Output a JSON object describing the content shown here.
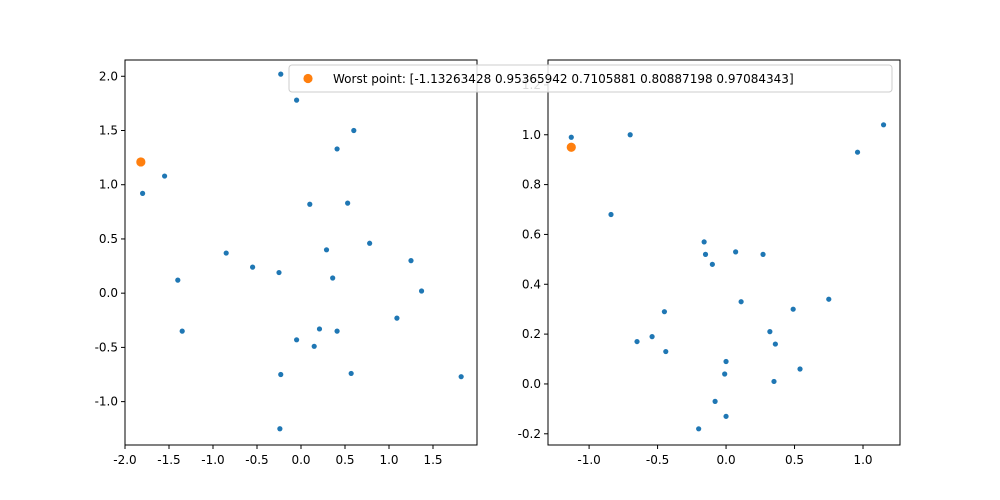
{
  "chart_data": [
    {
      "type": "scatter",
      "xlim": [
        -2.0,
        2.0
      ],
      "ylim": [
        -1.4,
        2.15
      ],
      "xticks": [
        "-2.0",
        "-1.5",
        "-1.0",
        "-0.5",
        "0.0",
        "0.5",
        "1.0",
        "1.5"
      ],
      "xtick_values": [
        -2.0,
        -1.5,
        -1.0,
        -0.5,
        0.0,
        0.5,
        1.0,
        1.5
      ],
      "yticks": [
        "-1.0",
        "-0.5",
        "0.0",
        "0.5",
        "1.0",
        "1.5",
        "2.0"
      ],
      "ytick_values": [
        -1.0,
        -0.5,
        0.0,
        0.5,
        1.0,
        1.5,
        2.0
      ],
      "grid": false,
      "series": [
        {
          "color": "#1f77b4",
          "marker_size": "small",
          "points": [
            [
              -0.23,
              2.02
            ],
            [
              -0.05,
              1.78
            ],
            [
              0.6,
              1.5
            ],
            [
              0.41,
              1.33
            ],
            [
              -1.55,
              1.08
            ],
            [
              -1.8,
              0.92
            ],
            [
              0.1,
              0.82
            ],
            [
              0.53,
              0.83
            ],
            [
              0.78,
              0.46
            ],
            [
              0.29,
              0.4
            ],
            [
              -0.85,
              0.37
            ],
            [
              -0.55,
              0.24
            ],
            [
              -0.25,
              0.19
            ],
            [
              1.25,
              0.3
            ],
            [
              0.36,
              0.14
            ],
            [
              -1.4,
              0.12
            ],
            [
              1.37,
              0.02
            ],
            [
              -1.35,
              -0.35
            ],
            [
              1.09,
              -0.23
            ],
            [
              0.21,
              -0.33
            ],
            [
              0.41,
              -0.35
            ],
            [
              -0.05,
              -0.43
            ],
            [
              0.15,
              -0.49
            ],
            [
              -0.23,
              -0.75
            ],
            [
              0.57,
              -0.74
            ],
            [
              1.82,
              -0.77
            ],
            [
              -0.24,
              -1.25
            ]
          ]
        },
        {
          "name": "Worst point: [-1.13263428  0.95365942  0.7105881   0.80887198  0.97084343]",
          "color": "#ff7f0e",
          "marker_size": "large",
          "points": [
            [
              -1.82,
              1.21
            ]
          ]
        }
      ],
      "legend": {
        "location": "upper right",
        "entries": [
          "Worst point: [-1.13263428  0.95365942  0.7105881   0.80887198  0.97084343]"
        ]
      }
    },
    {
      "type": "scatter",
      "xlim": [
        -1.3,
        1.27
      ],
      "ylim": [
        -0.245,
        1.3
      ],
      "xticks": [
        "-1.0",
        "-0.5",
        "0.0",
        "0.5",
        "1.0"
      ],
      "xtick_values": [
        -1.0,
        -0.5,
        0.0,
        0.5,
        1.0
      ],
      "yticks": [
        "-0.2",
        "0.0",
        "0.2",
        "0.4",
        "0.6",
        "0.8",
        "1.0",
        "1.2"
      ],
      "ytick_values": [
        -0.2,
        0.0,
        0.2,
        0.4,
        0.6,
        0.8,
        1.0,
        1.2
      ],
      "grid": false,
      "series": [
        {
          "color": "#1f77b4",
          "marker_size": "small",
          "points": [
            [
              -1.13,
              0.99
            ],
            [
              -0.7,
              1.0
            ],
            [
              1.15,
              1.04
            ],
            [
              0.96,
              0.93
            ],
            [
              -0.84,
              0.68
            ],
            [
              -0.16,
              0.57
            ],
            [
              -0.15,
              0.52
            ],
            [
              0.07,
              0.53
            ],
            [
              0.27,
              0.52
            ],
            [
              -0.1,
              0.48
            ],
            [
              0.11,
              0.33
            ],
            [
              0.75,
              0.34
            ],
            [
              -0.45,
              0.29
            ],
            [
              0.49,
              0.3
            ],
            [
              0.32,
              0.21
            ],
            [
              -0.54,
              0.19
            ],
            [
              -0.65,
              0.17
            ],
            [
              0.36,
              0.16
            ],
            [
              -0.44,
              0.13
            ],
            [
              0.0,
              0.09
            ],
            [
              0.54,
              0.06
            ],
            [
              -0.01,
              0.04
            ],
            [
              0.35,
              0.01
            ],
            [
              -0.08,
              -0.07
            ],
            [
              0.0,
              -0.13
            ],
            [
              -0.2,
              -0.18
            ]
          ]
        },
        {
          "color": "#ff7f0e",
          "marker_size": "large",
          "points": [
            [
              -1.13,
              0.95
            ]
          ]
        }
      ]
    }
  ]
}
